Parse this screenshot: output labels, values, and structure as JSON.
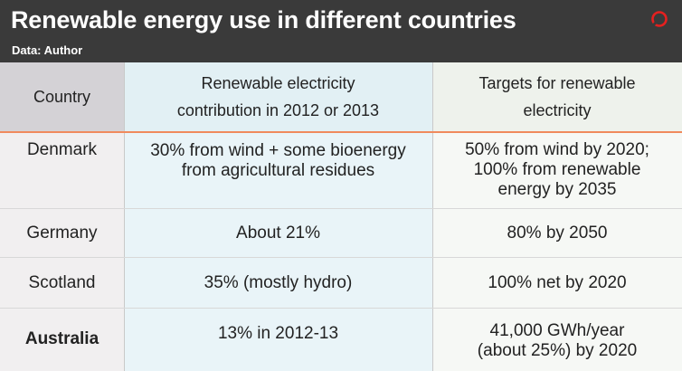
{
  "header": {
    "title": "Renewable energy use in different countries",
    "subtitle": "Data: Author",
    "logo_color": "#e5201f"
  },
  "table": {
    "columns": [
      "Country",
      "Renewable electricity\ncontribution in 2012 or 2013",
      "Targets for renewable\nelectricity"
    ],
    "rows": [
      {
        "country": "Denmark",
        "contribution": "30% from wind + some bioenergy\nfrom agricultural residues",
        "target": "50% from wind by 2020;\n100% from renewable\nenergy by 2035"
      },
      {
        "country": "Germany",
        "contribution": "About 21%",
        "target": "80% by 2050"
      },
      {
        "country": "Scotland",
        "contribution": "35% (mostly hydro)",
        "target": "100% net by 2020"
      },
      {
        "country": "Australia",
        "contribution": "13% in 2012-13",
        "target": "41,000 GWh/year\n(about 25%) by 2020"
      }
    ],
    "accent_color": "#f08a5d"
  }
}
